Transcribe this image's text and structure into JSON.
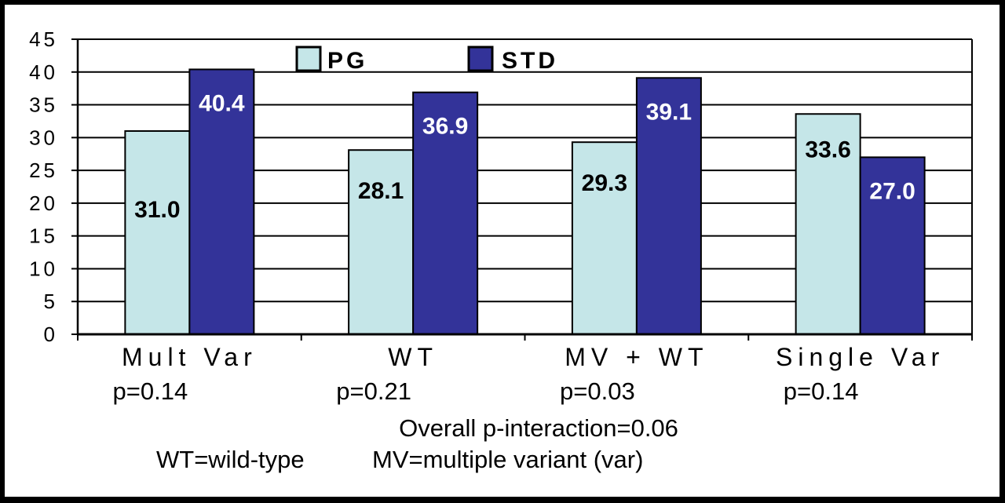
{
  "chart_data": {
    "type": "bar",
    "categories": [
      "Mult Var",
      "WT",
      "MV + WT",
      "Single Var"
    ],
    "p_values": [
      "p=0.14",
      "p=0.21",
      "p=0.03",
      "p=0.14"
    ],
    "series": [
      {
        "name": "PG",
        "values": [
          31.0,
          28.1,
          29.3,
          33.6
        ],
        "labels": [
          "31.0",
          "28.1",
          "29.3",
          "33.6"
        ],
        "color": "#c5e6e8",
        "label_color": "#000000"
      },
      {
        "name": "STD",
        "values": [
          40.4,
          36.9,
          39.1,
          27.0
        ],
        "labels": [
          "40.4",
          "36.9",
          "39.1",
          "27.0"
        ],
        "color": "#333399",
        "label_color": "#ffffff"
      }
    ],
    "ylim": [
      0,
      45
    ],
    "ytick_step": 5,
    "grid": true,
    "legend_position": "top-center",
    "footnotes": [
      "Overall p-interaction=0.06",
      "WT=wild-type",
      "MV=multiple variant (var)"
    ]
  }
}
